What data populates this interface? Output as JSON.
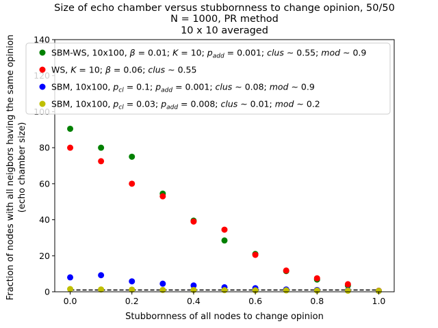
{
  "chart_data": {
    "type": "scatter",
    "title_lines": [
      "Size of echo chamber versus stubbornness to change opinion, 50/50",
      "N = 1000, PR method",
      "10 x 10 averaged"
    ],
    "xlabel": "Stubbornness of all nodes to change opinion",
    "ylabel_lines": [
      "Fraction of nodes with all neigbors having the same opinion",
      "(echo chamber size)"
    ],
    "xlim": [
      -0.05,
      1.05
    ],
    "ylim": [
      0,
      140
    ],
    "xticks": [
      0.0,
      0.2,
      0.4,
      0.6,
      0.8,
      1.0
    ],
    "xtick_labels": [
      "0.0",
      "0.2",
      "0.4",
      "0.6",
      "0.8",
      "1.0"
    ],
    "yticks": [
      0,
      20,
      40,
      60,
      80,
      100,
      120,
      140
    ],
    "ytick_labels": [
      "0",
      "20",
      "40",
      "60",
      "80",
      "100",
      "120",
      "140"
    ],
    "grid": false,
    "legend_position": "top",
    "x": [
      0.0,
      0.1,
      0.2,
      0.3,
      0.4,
      0.5,
      0.6,
      0.7,
      0.8,
      0.9,
      1.0
    ],
    "series": [
      {
        "name": "SBM-WS, 10x100, β = 0.01; K = 10; p_add = 0.001; clus ∼ 0.55; mod ∼ 0.9",
        "legend_parts": [
          {
            "t": "SBM-WS, 10x100, "
          },
          {
            "t": "β",
            "i": true
          },
          {
            "t": " = 0.01; "
          },
          {
            "t": "K",
            "i": true
          },
          {
            "t": " = 10; "
          },
          {
            "t": "p",
            "i": true
          },
          {
            "t": "add",
            "i": true,
            "sub": true
          },
          {
            "t": " = 0.001; "
          },
          {
            "t": "clus",
            "i": true
          },
          {
            "t": " ∼ 0.55; "
          },
          {
            "t": "mod",
            "i": true
          },
          {
            "t": " ∼ 0.9"
          }
        ],
        "color": "#008000",
        "values": [
          90.5,
          80.0,
          75.0,
          54.5,
          39.5,
          28.5,
          21.0,
          11.5,
          6.8,
          3.5,
          0.5
        ]
      },
      {
        "name": "WS, K = 10; β = 0.06; clus ∼ 0.55",
        "legend_parts": [
          {
            "t": "WS, "
          },
          {
            "t": "K",
            "i": true
          },
          {
            "t": " = 10; "
          },
          {
            "t": "β",
            "i": true
          },
          {
            "t": " = 0.06; "
          },
          {
            "t": "clus",
            "i": true
          },
          {
            "t": " ∼ 0.55"
          }
        ],
        "color": "#ff0000",
        "values": [
          80.0,
          72.5,
          60.0,
          53.0,
          39.0,
          34.5,
          20.5,
          11.8,
          7.5,
          4.2,
          0.6
        ]
      },
      {
        "name": "SBM, 10x100, p_cl = 0.1; p_add = 0.001; clus ∼ 0.08; mod ∼ 0.9",
        "legend_parts": [
          {
            "t": "SBM, 10x100, "
          },
          {
            "t": "p",
            "i": true
          },
          {
            "t": "cl",
            "i": true,
            "sub": true
          },
          {
            "t": " = 0.1; "
          },
          {
            "t": "p",
            "i": true
          },
          {
            "t": "add",
            "i": true,
            "sub": true
          },
          {
            "t": " = 0.001; "
          },
          {
            "t": "clus",
            "i": true
          },
          {
            "t": " ∼ 0.08; "
          },
          {
            "t": "mod",
            "i": true
          },
          {
            "t": " ∼ 0.9"
          }
        ],
        "color": "#0000ff",
        "values": [
          8.0,
          9.2,
          5.8,
          4.5,
          3.5,
          2.5,
          2.0,
          1.3,
          1.0,
          0.8,
          0.5
        ]
      },
      {
        "name": "SBM, 10x100, p_cl = 0.03; p_add = 0.008; clus ∼ 0.01; mod ∼ 0.2",
        "legend_parts": [
          {
            "t": "SBM, 10x100, "
          },
          {
            "t": "p",
            "i": true
          },
          {
            "t": "cl",
            "i": true,
            "sub": true
          },
          {
            "t": " = 0.03; "
          },
          {
            "t": "p",
            "i": true
          },
          {
            "t": "add",
            "i": true,
            "sub": true
          },
          {
            "t": " = 0.008; "
          },
          {
            "t": "clus",
            "i": true
          },
          {
            "t": " ∼ 0.01; "
          },
          {
            "t": "mod",
            "i": true
          },
          {
            "t": " ∼ 0.2"
          }
        ],
        "color": "#bfbf00",
        "values": [
          1.5,
          1.3,
          1.2,
          1.0,
          1.0,
          0.9,
          0.8,
          0.8,
          0.7,
          0.6,
          0.5
        ]
      }
    ],
    "reference_line": {
      "style": "dashed",
      "color": "#000000",
      "y": 1.0
    }
  }
}
